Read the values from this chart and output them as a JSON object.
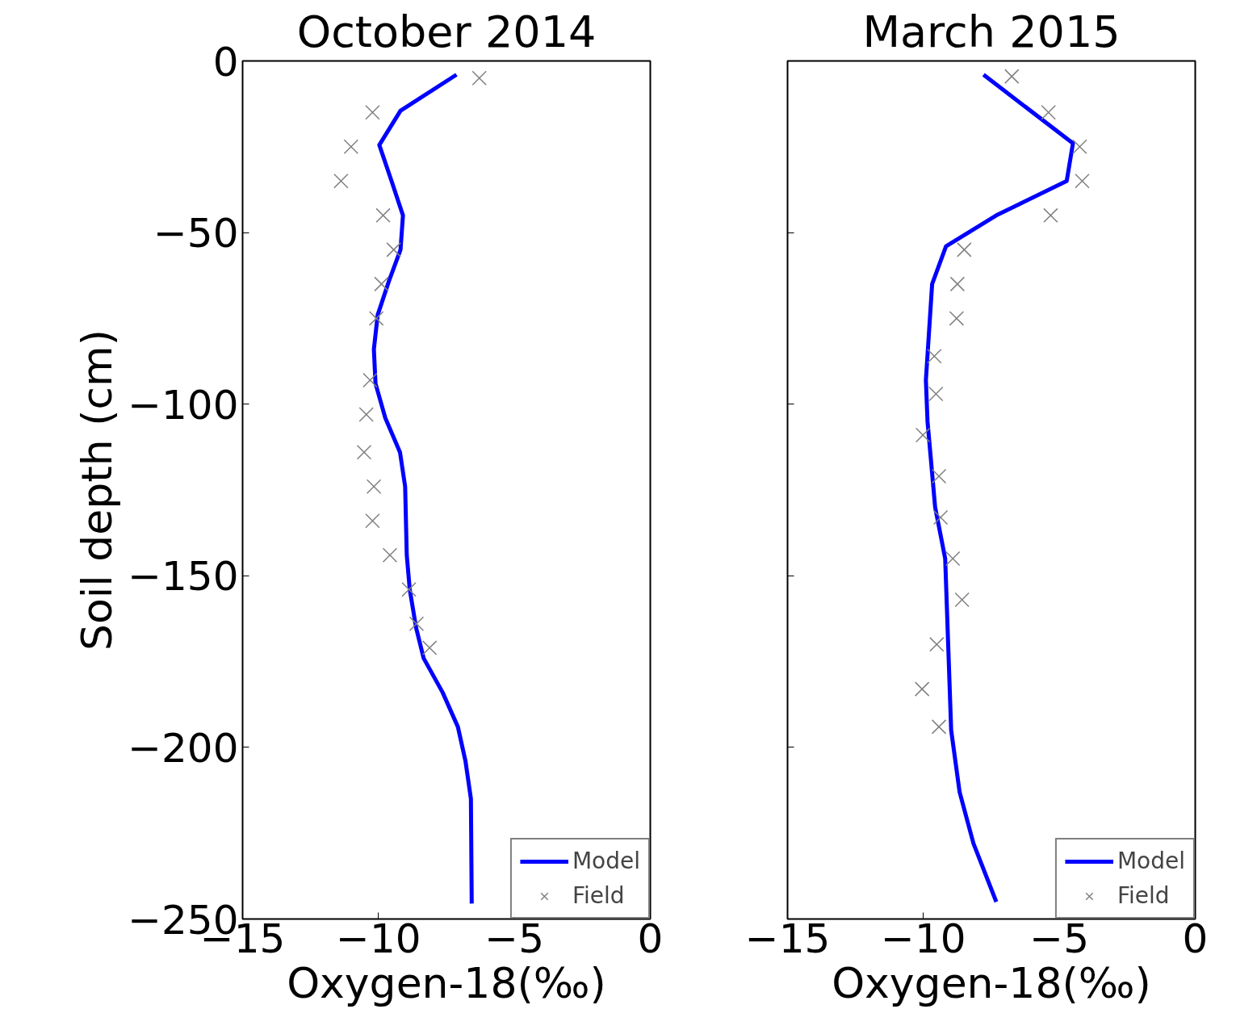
{
  "chart_data": [
    {
      "type": "line",
      "title": "October 2014",
      "xlabel": "Oxygen-18(‰)",
      "ylabel": "Soil depth (cm)",
      "xlim": [
        -15,
        0
      ],
      "xticks": [
        -15,
        -10,
        -5,
        0
      ],
      "ylim": [
        -250,
        0
      ],
      "yticks": [
        -250,
        -200,
        -150,
        -100,
        -50,
        0
      ],
      "grid": false,
      "legend": "bottom right",
      "series": [
        {
          "name": "Model",
          "color": "#0000ff",
          "marker": "none",
          "line_style": "solid",
          "x": [
            -7.13,
            -9.19,
            -9.97,
            -9.52,
            -9.1,
            -9.19,
            -9.61,
            -10.03,
            -10.17,
            -10.11,
            -9.75,
            -9.21,
            -9.02,
            -8.96,
            -8.85,
            -8.62,
            -8.34,
            -7.64,
            -7.08,
            -6.8,
            -6.6,
            -6.57
          ],
          "values": [
            -4,
            -14.5,
            -24.5,
            -35,
            -45,
            -55,
            -64,
            -74,
            -84,
            -94,
            -104,
            -114,
            -124,
            -144,
            -154,
            -165,
            -174,
            -184,
            -194,
            -204,
            -215,
            -245.5
          ]
        },
        {
          "name": "Field",
          "type": "scatter",
          "color": "#808080",
          "marker": "cross",
          "x": [
            -6.29,
            -10.22,
            -11.01,
            -11.38,
            -9.83,
            -9.44,
            -9.89,
            -10.08,
            -10.31,
            -10.45,
            -10.53,
            -10.17,
            -10.22,
            -9.58,
            -8.88,
            -8.6,
            -8.12
          ],
          "values": [
            -5,
            -15,
            -25,
            -35,
            -45,
            -55,
            -65,
            -75,
            -93,
            -103,
            -114,
            -124,
            -134,
            -144,
            -154,
            -164,
            -171
          ]
        }
      ]
    },
    {
      "type": "line",
      "title": "March 2015",
      "xlabel": "Oxygen-18(‰)",
      "xlim": [
        -15,
        0
      ],
      "xticks": [
        -15,
        -10,
        -5,
        0
      ],
      "ylim": [
        -250,
        0
      ],
      "yticks": [
        -250,
        -200,
        -150,
        -100,
        -50,
        0
      ],
      "tick_labels": "x",
      "grid": false,
      "legend": "bottom right",
      "series": [
        {
          "name": "Model",
          "color": "#0000ff",
          "marker": "none",
          "line_style": "solid",
          "x": [
            -7.79,
            -4.5,
            -4.73,
            -7.32,
            -9.17,
            -9.68,
            -9.91,
            -9.85,
            -9.57,
            -9.2,
            -9.09,
            -8.98,
            -8.67,
            -8.16,
            -7.32
          ],
          "values": [
            -4,
            -24,
            -35,
            -45,
            -54,
            -65,
            -93,
            -105,
            -130,
            -145,
            -170,
            -195,
            -213,
            -228,
            -245
          ]
        },
        {
          "name": "Field",
          "type": "scatter",
          "color": "#808080",
          "marker": "cross",
          "x": [
            -6.75,
            -5.4,
            -4.25,
            -4.16,
            -5.32,
            -8.5,
            -8.75,
            -8.78,
            -9.6,
            -9.54,
            -10.02,
            -9.43,
            -9.37,
            -8.92,
            -8.58,
            -9.51,
            -10.05,
            -9.43
          ],
          "values": [
            -4.5,
            -15,
            -25,
            -35,
            -45,
            -55,
            -65,
            -75,
            -86,
            -97,
            -109,
            -121,
            -133,
            -145,
            -157,
            -170,
            -183,
            -194
          ]
        }
      ]
    }
  ]
}
